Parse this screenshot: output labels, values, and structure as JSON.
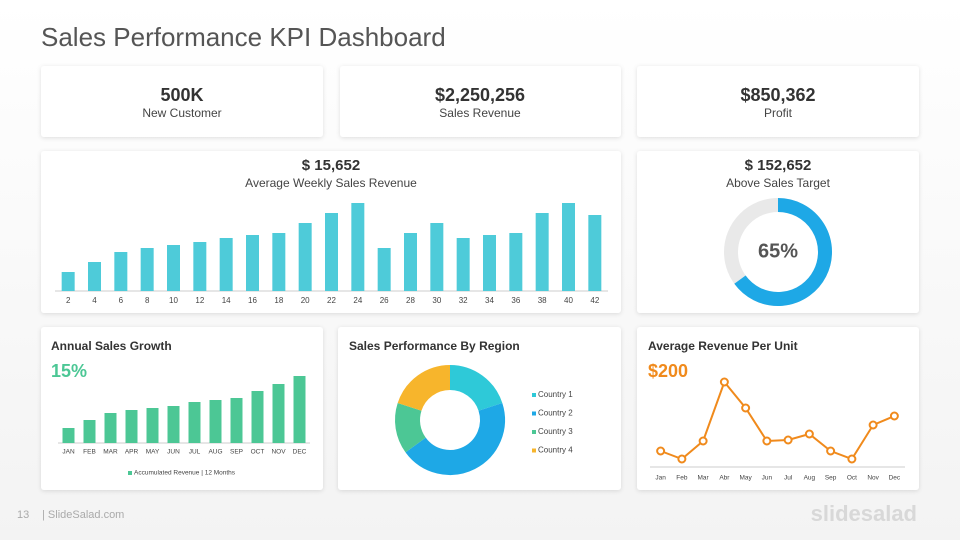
{
  "title": "Sales Performance KPI Dashboard",
  "kpis": [
    {
      "value": "500K",
      "label": "New Customer"
    },
    {
      "value": "$2,250,256",
      "label": "Sales Revenue"
    },
    {
      "value": "$850,362",
      "label": "Profit"
    }
  ],
  "footer": {
    "page": "13",
    "site": "| SlideSalad.com",
    "logo": "slidesalad"
  },
  "chart_data": [
    {
      "type": "bar",
      "title": "$ 15,652",
      "subtitle": "Average Weekly Sales Revenue",
      "color": "#4ecbd9",
      "categories": [
        2,
        4,
        6,
        8,
        10,
        12,
        14,
        16,
        18,
        20,
        22,
        24,
        26,
        28,
        30,
        32,
        34,
        36,
        38,
        40,
        42
      ],
      "values": [
        19,
        29,
        39,
        43,
        46,
        49,
        53,
        56,
        58,
        68,
        78,
        88,
        43,
        58,
        68,
        53,
        56,
        58,
        78,
        88,
        76
      ]
    },
    {
      "type": "gauge",
      "title": "$ 152,652",
      "subtitle": "Above Sales Target",
      "values": [
        65
      ],
      "value_labels": [
        "65%"
      ],
      "color": "#1ea8e6",
      "track_color": "#e9e9e9"
    },
    {
      "type": "bar",
      "title": "Annual Sales Growth",
      "highlight": "15%",
      "highlight_color": "#4cc795",
      "categories": [
        "JAN",
        "FEB",
        "MAR",
        "APR",
        "MAY",
        "JUN",
        "JUL",
        "AUG",
        "SEP",
        "OCT",
        "NOV",
        "DEC"
      ],
      "series": [
        {
          "name": "Accumulated Revenue | 12 Months",
          "color": "#4cc795",
          "values": [
            15,
            23,
            30,
            33,
            35,
            37,
            41,
            43,
            45,
            52,
            59,
            67
          ]
        }
      ]
    },
    {
      "type": "pie",
      "title": "Sales Performance By Region",
      "categories": [
        "Country 1",
        "Country 2",
        "Country 3",
        "Country 4"
      ],
      "values": [
        20,
        45,
        15,
        20
      ],
      "colors": [
        "#2ec9d8",
        "#1ea8e6",
        "#4cc795",
        "#f7b52c"
      ]
    },
    {
      "type": "line",
      "title": "Average Revenue Per Unit",
      "highlight": "$200",
      "highlight_color": "#f08a1c",
      "color": "#f08a1c",
      "categories": [
        "Jan",
        "Feb",
        "Mar",
        "Abr",
        "May",
        "Jun",
        "Jul",
        "Aug",
        "Sep",
        "Oct",
        "Nov",
        "Dec"
      ],
      "values": [
        16,
        8,
        26,
        85,
        59,
        26,
        27,
        33,
        16,
        8,
        42,
        51
      ]
    }
  ]
}
